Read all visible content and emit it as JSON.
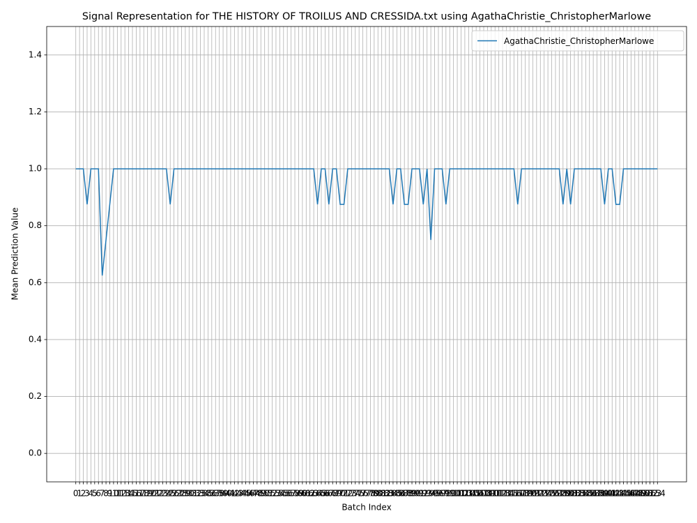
{
  "chart_data": {
    "type": "line",
    "title": "Signal Representation for THE HISTORY OF TROILUS AND CRESSIDA.txt using AgathaChristie_ChristopherMarlowe",
    "x_label": "Batch Index",
    "y_label": "Mean Prediction Value",
    "x": [
      0,
      1,
      2,
      3,
      4,
      5,
      6,
      7,
      8,
      9,
      10,
      11,
      12,
      13,
      14,
      15,
      16,
      17,
      18,
      19,
      20,
      21,
      22,
      23,
      24,
      25,
      26,
      27,
      28,
      29,
      30,
      31,
      32,
      33,
      34,
      35,
      36,
      37,
      38,
      39,
      40,
      41,
      42,
      43,
      44,
      45,
      46,
      47,
      48,
      49,
      50,
      51,
      52,
      53,
      54,
      55,
      56,
      57,
      58,
      59,
      60,
      61,
      62,
      63,
      64,
      65,
      66,
      67,
      68,
      69,
      70,
      71,
      72,
      73,
      74,
      75,
      76,
      77,
      78,
      79,
      80,
      81,
      82,
      83,
      84,
      85,
      86,
      87,
      88,
      89,
      90,
      91,
      92,
      93,
      94,
      95,
      96,
      97,
      98,
      99,
      100,
      101,
      102,
      103,
      104,
      105,
      106,
      107,
      108,
      109,
      110,
      111,
      112,
      113,
      114,
      115,
      116,
      117,
      118,
      119,
      120,
      121,
      122,
      123,
      124,
      125,
      126,
      127,
      128,
      129,
      130,
      131,
      132,
      133,
      134,
      135,
      136,
      137,
      138,
      139,
      140,
      141,
      142,
      143,
      144,
      145,
      146,
      147,
      148,
      149,
      150,
      151,
      152,
      153,
      154
    ],
    "series": [
      {
        "name": "AgathaChristie_ChristopherMarlowe",
        "color": "#1f77b4",
        "values": [
          1,
          1,
          1,
          0.875,
          1,
          1,
          1,
          0.625,
          0.75,
          0.875,
          1,
          1,
          1,
          1,
          1,
          1,
          1,
          1,
          1,
          1,
          1,
          1,
          1,
          1,
          1,
          0.875,
          1,
          1,
          1,
          1,
          1,
          1,
          1,
          1,
          1,
          1,
          1,
          1,
          1,
          1,
          1,
          1,
          1,
          1,
          1,
          1,
          1,
          1,
          1,
          1,
          1,
          1,
          1,
          1,
          1,
          1,
          1,
          1,
          1,
          1,
          1,
          1,
          1,
          1,
          0.875,
          1,
          1,
          0.875,
          1,
          1,
          0.875,
          0.875,
          1,
          1,
          1,
          1,
          1,
          1,
          1,
          1,
          1,
          1,
          1,
          1,
          0.875,
          1,
          1,
          0.875,
          0.875,
          1,
          1,
          1,
          0.875,
          1,
          0.75,
          1,
          1,
          1,
          0.875,
          1,
          1,
          1,
          1,
          1,
          1,
          1,
          1,
          1,
          1,
          1,
          1,
          1,
          1,
          1,
          1,
          1,
          1,
          0.875,
          1,
          1,
          1,
          1,
          1,
          1,
          1,
          1,
          1,
          1,
          1,
          0.875,
          1,
          0.875,
          1,
          1,
          1,
          1,
          1,
          1,
          1,
          1,
          0.875,
          1,
          1,
          0.875,
          0.875,
          1,
          1,
          1,
          1,
          1,
          1,
          1,
          1,
          1,
          1
        ]
      }
    ],
    "xlim": [
      -7.7,
      161.7
    ],
    "ylim": [
      -0.1,
      1.5
    ],
    "yticks": [
      {
        "value": 0,
        "label": "0.0"
      },
      0.2,
      0.4,
      0.6,
      0.8,
      {
        "value": 1,
        "label": "1.0"
      },
      1.2,
      1.4
    ],
    "grid": true,
    "legend": "upper right"
  }
}
